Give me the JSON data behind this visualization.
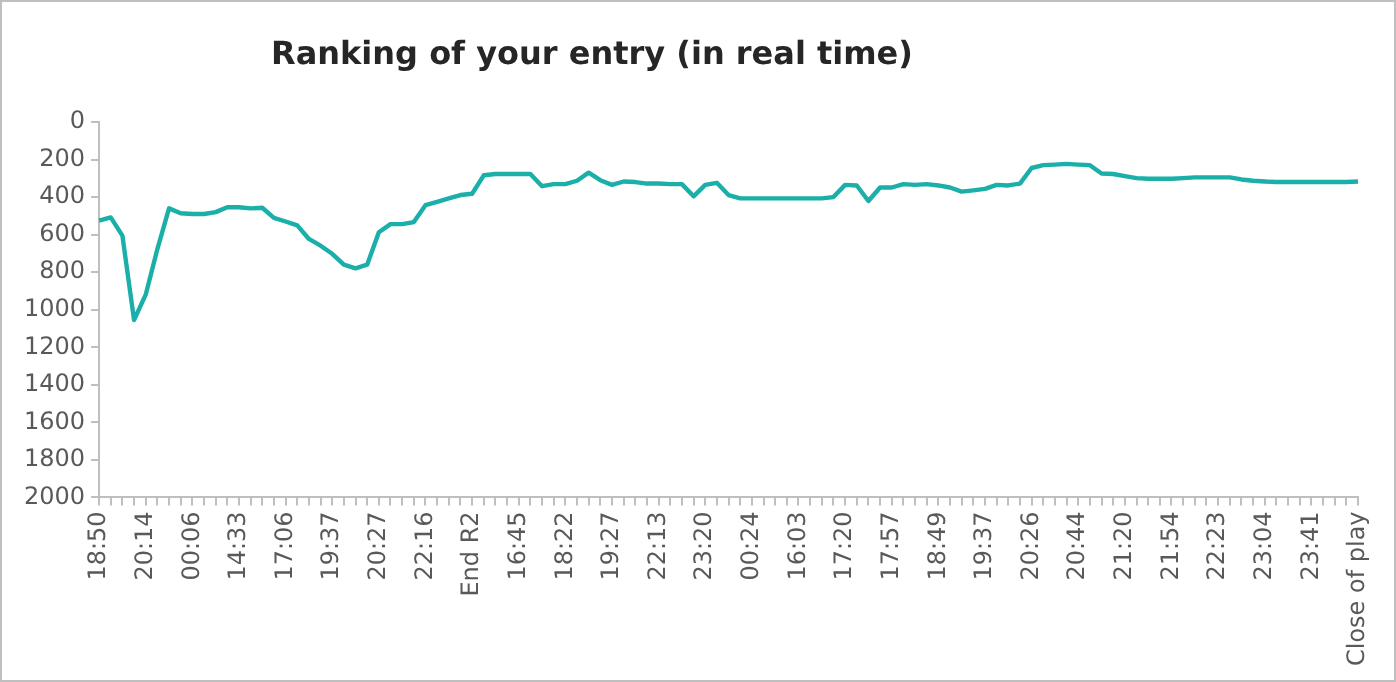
{
  "chart_data": {
    "type": "line",
    "title": "Ranking of your entry (in real time)",
    "categories": [
      "18:50",
      null,
      null,
      null,
      "20:14",
      null,
      null,
      null,
      "00:06",
      null,
      null,
      null,
      "14:33",
      null,
      null,
      null,
      "17:06",
      null,
      null,
      null,
      "19:37",
      null,
      null,
      null,
      "20:27",
      null,
      null,
      null,
      "22:16",
      null,
      null,
      null,
      "End R2",
      null,
      null,
      null,
      "16:45",
      null,
      null,
      null,
      "18:22",
      null,
      null,
      null,
      "19:27",
      null,
      null,
      null,
      "22:13",
      null,
      null,
      null,
      "23:20",
      null,
      null,
      null,
      "00:24",
      null,
      null,
      null,
      "16:03",
      null,
      null,
      null,
      "17:20",
      null,
      null,
      null,
      "17:57",
      null,
      null,
      null,
      "18:49",
      null,
      null,
      null,
      "19:37",
      null,
      null,
      null,
      "20:26",
      null,
      null,
      null,
      "20:44",
      null,
      null,
      null,
      "21:20",
      null,
      null,
      null,
      "21:54",
      null,
      null,
      null,
      "22:23",
      null,
      null,
      null,
      "23:04",
      null,
      null,
      null,
      "23:41",
      null,
      null,
      null,
      "Close of play"
    ],
    "series": [
      {
        "color": "#1aafa8",
        "values": [
          525,
          508,
          605,
          1055,
          920,
          677,
          460,
          486,
          490,
          490,
          480,
          454,
          454,
          460,
          457,
          511,
          530,
          551,
          623,
          659,
          702,
          760,
          780,
          760,
          587,
          544,
          544,
          533,
          443,
          425,
          407,
          389,
          382,
          284,
          277,
          277,
          277,
          277,
          342,
          331,
          331,
          313,
          270,
          310,
          335,
          317,
          320,
          328,
          328,
          331,
          331,
          396,
          335,
          324,
          389,
          407,
          407,
          407,
          407,
          407,
          407,
          407,
          407,
          400,
          335,
          338,
          421,
          349,
          349,
          331,
          335,
          331,
          338,
          349,
          371,
          364,
          356,
          335,
          338,
          328,
          245,
          230,
          227,
          223,
          227,
          230,
          274,
          277,
          288,
          299,
          302,
          302,
          302,
          299,
          295,
          295,
          295,
          295,
          306,
          313,
          317,
          320,
          320,
          320,
          320,
          320,
          320,
          320,
          317
        ]
      }
    ],
    "ylim": [
      2000,
      0
    ],
    "yticks": [
      0,
      200,
      400,
      600,
      800,
      1000,
      1200,
      1400,
      1600,
      1800,
      2000
    ],
    "grid": false,
    "legend": false,
    "marker": "none",
    "line_style": "solid"
  }
}
